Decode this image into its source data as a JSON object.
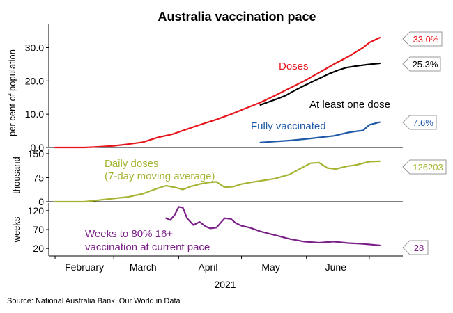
{
  "chart_data": {
    "type": "line",
    "title": "Australia vaccination pace",
    "source": "Source: National Australia Bank, Our World in Data",
    "year_label": "2021",
    "x_tick_labels": [
      "February",
      "March",
      "April",
      "May",
      "June"
    ],
    "panels": [
      {
        "id": "cumulative",
        "ylabel": "per cent of population",
        "ylim": [
          0,
          37
        ],
        "yticks": [
          "0.0",
          "10.0",
          "20.0",
          "30.0"
        ],
        "series": [
          {
            "name": "Doses",
            "color": "#e8141b",
            "end_label": "33.0%",
            "x": [
              "2021-02-01",
              "2021-02-15",
              "2021-02-22",
              "2021-03-01",
              "2021-03-08",
              "2021-03-15",
              "2021-03-22",
              "2021-03-29",
              "2021-04-05",
              "2021-04-12",
              "2021-04-19",
              "2021-04-26",
              "2021-05-03",
              "2021-05-10",
              "2021-05-17",
              "2021-05-24",
              "2021-05-31",
              "2021-06-07",
              "2021-06-14",
              "2021-06-21",
              "2021-06-28",
              "2021-07-01",
              "2021-07-06"
            ],
            "y": [
              0,
              0,
              0.2,
              0.5,
              1.0,
              1.6,
              3.0,
              4.0,
              5.5,
              7.0,
              8.4,
              10.0,
              11.8,
              13.5,
              15.6,
              17.8,
              20.0,
              22.5,
              25.0,
              27.3,
              30.0,
              31.5,
              33.0
            ]
          },
          {
            "name": "At least one dose",
            "color": "#000000",
            "end_label": "25.3%",
            "x": [
              "2021-05-10",
              "2021-05-14",
              "2021-05-18",
              "2021-05-22",
              "2021-05-26",
              "2021-05-31",
              "2021-06-04",
              "2021-06-08",
              "2021-06-12",
              "2021-06-16",
              "2021-06-20",
              "2021-06-25",
              "2021-06-30",
              "2021-07-06"
            ],
            "y": [
              12.8,
              13.7,
              14.6,
              15.6,
              17.0,
              18.6,
              19.8,
              21.0,
              22.2,
              23.2,
              24.0,
              24.5,
              24.9,
              25.3
            ]
          },
          {
            "name": "Fully vaccinated",
            "color": "#1f5aa8",
            "end_label": "7.6%",
            "x": [
              "2021-05-10",
              "2021-05-17",
              "2021-05-24",
              "2021-05-31",
              "2021-06-07",
              "2021-06-14",
              "2021-06-21",
              "2021-06-25",
              "2021-06-28",
              "2021-07-01",
              "2021-07-06"
            ],
            "y": [
              1.5,
              1.8,
              2.1,
              2.5,
              3.0,
              3.5,
              4.5,
              4.9,
              5.1,
              6.8,
              7.6
            ]
          }
        ]
      },
      {
        "id": "daily",
        "ylabel": "thousand",
        "ylim": [
          0,
          165
        ],
        "yticks": [
          "0",
          "75",
          "150"
        ],
        "series": [
          {
            "name": "Daily doses\n(7-day moving average)",
            "color": "#a6b332",
            "end_label": "126203",
            "x": [
              "2021-02-01",
              "2021-02-15",
              "2021-02-22",
              "2021-03-01",
              "2021-03-08",
              "2021-03-15",
              "2021-03-22",
              "2021-03-26",
              "2021-03-30",
              "2021-04-03",
              "2021-04-07",
              "2021-04-11",
              "2021-04-15",
              "2021-04-19",
              "2021-04-23",
              "2021-04-27",
              "2021-05-01",
              "2021-05-05",
              "2021-05-10",
              "2021-05-17",
              "2021-05-24",
              "2021-05-31",
              "2021-06-03",
              "2021-06-07",
              "2021-06-11",
              "2021-06-15",
              "2021-06-20",
              "2021-06-25",
              "2021-07-01",
              "2021-07-06"
            ],
            "y": [
              0,
              0,
              5,
              10,
              15,
              25,
              42,
              50,
              45,
              38,
              48,
              55,
              60,
              62,
              45,
              47,
              55,
              60,
              65,
              72,
              85,
              110,
              120,
              122,
              105,
              102,
              110,
              115,
              125,
              126.2
            ]
          }
        ]
      },
      {
        "id": "weeks",
        "ylabel": "weeks",
        "ylim": [
          0,
          140
        ],
        "yticks": [
          "20",
          "70",
          "120"
        ],
        "series": [
          {
            "name": "Weeks to 80% 16+\nvaccination at current pace",
            "color": "#7b2088",
            "end_label": "28",
            "x": [
              "2021-03-26",
              "2021-03-28",
              "2021-03-30",
              "2021-04-01",
              "2021-04-03",
              "2021-04-05",
              "2021-04-08",
              "2021-04-11",
              "2021-04-14",
              "2021-04-16",
              "2021-04-19",
              "2021-04-23",
              "2021-04-26",
              "2021-04-28",
              "2021-05-01",
              "2021-05-05",
              "2021-05-10",
              "2021-05-17",
              "2021-05-24",
              "2021-05-31",
              "2021-06-07",
              "2021-06-14",
              "2021-06-21",
              "2021-06-28",
              "2021-07-06"
            ],
            "y": [
              100,
              95,
              108,
              130,
              128,
              100,
              82,
              90,
              78,
              73,
              75,
              100,
              98,
              88,
              80,
              75,
              65,
              55,
              45,
              38,
              35,
              38,
              34,
              32,
              28
            ]
          }
        ]
      }
    ]
  }
}
